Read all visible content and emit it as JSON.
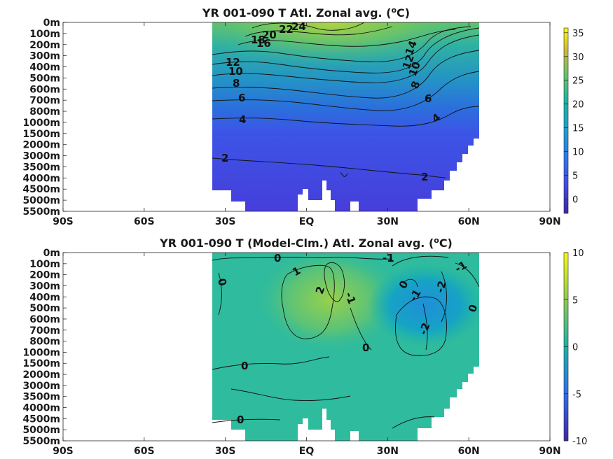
{
  "chart_data": [
    {
      "type": "heatmap",
      "title": "YR 001-090 T Atl. Zonal avg. (",
      "title_superscript": "o",
      "title_suffix": "C)",
      "x_ticks": [
        "90S",
        "60S",
        "30S",
        "EQ",
        "30N",
        "60N",
        "90N"
      ],
      "x_values": [
        -90,
        -60,
        -30,
        0,
        30,
        60,
        90
      ],
      "y_ticks": [
        "0m",
        "100m",
        "200m",
        "300m",
        "400m",
        "500m",
        "600m",
        "700m",
        "800m",
        "1000m",
        "1500m",
        "2000m",
        "3000m",
        "3500m",
        "4000m",
        "4500m",
        "5000m",
        "5500m"
      ],
      "data_lon_range": [
        -35,
        63
      ],
      "colorbar": {
        "ticks": [
          "35",
          "30",
          "25",
          "20",
          "15",
          "10",
          "5",
          "0"
        ],
        "values": [
          35,
          30,
          25,
          20,
          15,
          10,
          5,
          0
        ],
        "range": [
          -3,
          36
        ]
      },
      "contour_labels": [
        "24",
        "22",
        "20",
        "18",
        "16",
        "14",
        "12",
        "12",
        "10",
        "10",
        "8",
        "8",
        "6",
        "6",
        "4",
        "4",
        "2",
        "2"
      ],
      "colors": {
        "low": "#3d3fcf",
        "mid": "#1f9fb0",
        "high": "#f5e11e"
      }
    },
    {
      "type": "heatmap",
      "title": "YR 001-090 T (Model-Clm.) Atl. Zonal avg. (",
      "title_superscript": "o",
      "title_suffix": "C)",
      "x_ticks": [
        "90S",
        "60S",
        "30S",
        "EQ",
        "30N",
        "60N",
        "90N"
      ],
      "x_values": [
        -90,
        -60,
        -30,
        0,
        30,
        60,
        90
      ],
      "y_ticks": [
        "0m",
        "100m",
        "200m",
        "300m",
        "400m",
        "500m",
        "600m",
        "700m",
        "800m",
        "1000m",
        "1500m",
        "2000m",
        "3000m",
        "3500m",
        "4000m",
        "4500m",
        "5000m",
        "5500m"
      ],
      "data_lon_range": [
        -35,
        63
      ],
      "colorbar": {
        "ticks": [
          "10",
          "5",
          "0",
          "-5",
          "-10"
        ],
        "values": [
          10,
          5,
          0,
          -5,
          -10
        ],
        "range": [
          -10,
          10
        ]
      },
      "contour_labels": [
        "0",
        "0",
        "0",
        "0",
        "0",
        "0",
        "0",
        "1",
        "2",
        "-1",
        "-1",
        "-1",
        "-1",
        "-2",
        "-2"
      ],
      "colors": {
        "low": "#3e26a8",
        "zero": "#19b8a8",
        "high": "#f9fb0e"
      }
    }
  ]
}
